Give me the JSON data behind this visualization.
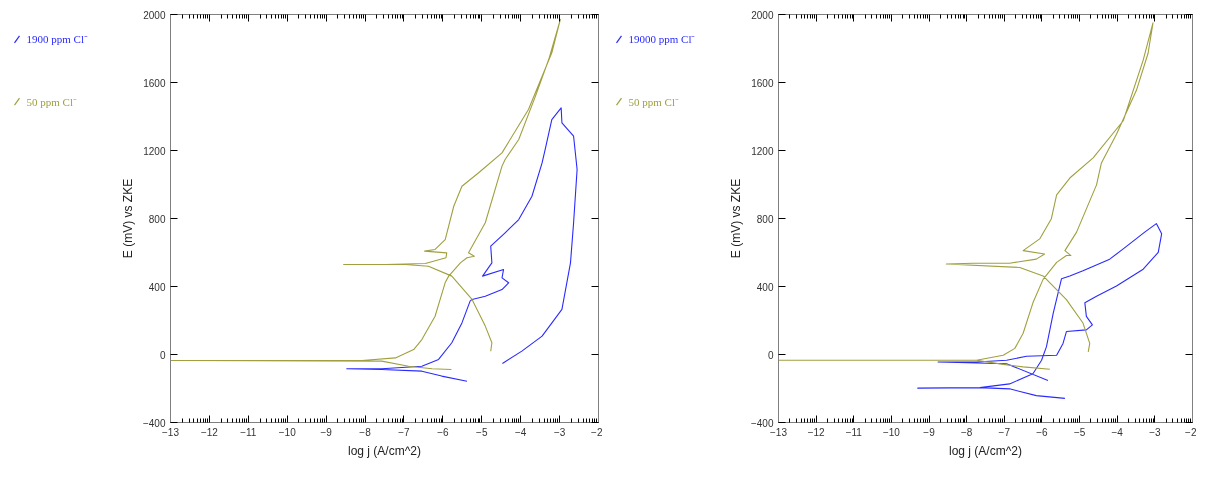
{
  "chart_data": [
    {
      "type": "line",
      "xlabel": "log j (A/cm^2)",
      "ylabel": "E (mV) vs ZKE",
      "legend": "left",
      "xlim": [
        -13,
        -2
      ],
      "ylim": [
        -400,
        2000
      ],
      "xticks": [
        -13,
        -12,
        -11,
        -10,
        -9,
        -8,
        -7,
        -6,
        -5,
        -4,
        -3,
        -2
      ],
      "yticks": [
        -400,
        0,
        400,
        800,
        1200,
        1600,
        2000
      ],
      "series": [
        {
          "name": "1900 ppm Cl⁻",
          "color": "#2a2aff",
          "x": [
            -5.38,
            -6.03,
            -6.54,
            -7.57,
            -8.47,
            -7.57,
            -6.54,
            -6.11,
            -5.77,
            -5.51,
            -5.3,
            -5.25,
            -4.91,
            -4.48,
            -4.31,
            -4.48,
            -4.44,
            -4.98,
            -4.74,
            -4.77,
            -4.4,
            -4.05,
            -3.71,
            -3.45,
            -3.37,
            -3.2,
            -2.96,
            -2.94,
            -2.64,
            -2.55,
            -2.64,
            -2.72,
            -2.94,
            -3.45,
            -3.97,
            -4.47
          ],
          "values": [
            -157,
            -127,
            -98,
            -88,
            -84,
            -84,
            -69,
            -29,
            69,
            186,
            314,
            324,
            343,
            382,
            422,
            451,
            500,
            461,
            539,
            637,
            716,
            794,
            931,
            1127,
            1206,
            1382,
            1451,
            1363,
            1284,
            1088,
            775,
            539,
            265,
            108,
            20,
            -53
          ]
        },
        {
          "name": "50 ppm Cl⁻",
          "color": "#a0a040",
          "x": [
            -5.78,
            -6.28,
            -6.88,
            -7.57,
            -13,
            -8.08,
            -7.22,
            -6.75,
            -6.54,
            -6.2,
            -5.94,
            -5.85,
            -5.55,
            -5.38,
            -5.19,
            -5.34,
            -4.91,
            -4.48,
            -4.4,
            -4.05,
            -3.62,
            -3.28,
            -2.98,
            -3.2,
            -3.8,
            -4.48,
            -5.08,
            -5.51,
            -5.72,
            -5.94,
            -6.2,
            -6.47,
            -5.9,
            -5.92,
            -6.45,
            -7.48,
            -8.55,
            -6.97,
            -6.37,
            -5.77,
            -5.25,
            -4.91,
            -4.74,
            -4.77
          ],
          "values": [
            -88,
            -84,
            -69,
            -39,
            -35,
            -35,
            -20,
            29,
            88,
            225,
            423,
            461,
            539,
            569,
            578,
            598,
            775,
            1108,
            1147,
            1265,
            1520,
            1735,
            1971,
            1775,
            1441,
            1186,
            1069,
            990,
            872,
            676,
            618,
            608,
            598,
            569,
            535,
            529,
            529,
            529,
            519,
            461,
            324,
            167,
            69,
            19
          ]
        }
      ]
    },
    {
      "type": "line",
      "xlabel": "log j (A/cm^2)",
      "ylabel": "E (mV) vs ZKE",
      "legend": "left",
      "xlim": [
        -13,
        -2
      ],
      "ylim": [
        -400,
        2000
      ],
      "xticks": [
        -13,
        -12,
        -11,
        -10,
        -9,
        -8,
        -7,
        -6,
        -5,
        -4,
        -3,
        -2
      ],
      "yticks": [
        -400,
        0,
        400,
        800,
        1200,
        1600,
        2000
      ],
      "series": [
        {
          "name": "19000 ppm Cl⁻",
          "color": "#2a2aff",
          "x": [
            -5.39,
            -6.15,
            -6.86,
            -7.65,
            -9.3,
            -7.65,
            -6.86,
            -6.24,
            -6.01,
            -5.88,
            -5.7,
            -5.48,
            -5.26,
            -4.91,
            -4.2,
            -3.84,
            -3.27,
            -2.96,
            -2.82,
            -2.91,
            -3.31,
            -4.02,
            -4.55,
            -4.86,
            -4.82,
            -4.66,
            -4.82,
            -5.35,
            -5.44,
            -5.61,
            -6.41,
            -6.94,
            -7.74,
            -8.76,
            -6.94,
            -5.84
          ],
          "values": [
            -258,
            -242,
            -202,
            -195,
            -198,
            -195,
            -173,
            -113,
            -34,
            46,
            244,
            446,
            462,
            492,
            561,
            621,
            720,
            770,
            710,
            601,
            502,
            403,
            343,
            304,
            224,
            174,
            145,
            135,
            65,
            -4,
            -10,
            -34,
            -44,
            -44,
            -54,
            -153
          ]
        },
        {
          "name": "50 ppm Cl⁻",
          "color": "#a0a040",
          "x": [
            -5.79,
            -6.5,
            -7.03,
            -7.74,
            -13,
            -7.74,
            -7.03,
            -6.72,
            -6.5,
            -6.24,
            -5.97,
            -5.61,
            -5.35,
            -5.23,
            -5.39,
            -5.08,
            -4.55,
            -4.42,
            -4.02,
            -3.49,
            -3.18,
            -3.05,
            -3.31,
            -3.84,
            -4.64,
            -5.26,
            -5.61,
            -5.75,
            -6.06,
            -6.5,
            -5.93,
            -6.15,
            -6.86,
            -7.83,
            -8.54,
            -6.59,
            -5.97,
            -5.35,
            -4.91,
            -4.73,
            -4.77
          ],
          "values": [
            -87,
            -73,
            -58,
            -34,
            -34,
            -34,
            -4,
            36,
            125,
            304,
            442,
            542,
            582,
            582,
            611,
            720,
            998,
            1127,
            1296,
            1554,
            1772,
            1951,
            1732,
            1375,
            1157,
            1038,
            939,
            799,
            680,
            611,
            591,
            561,
            537,
            537,
            532,
            512,
            462,
            323,
            185,
            65,
            16
          ]
        }
      ]
    }
  ]
}
